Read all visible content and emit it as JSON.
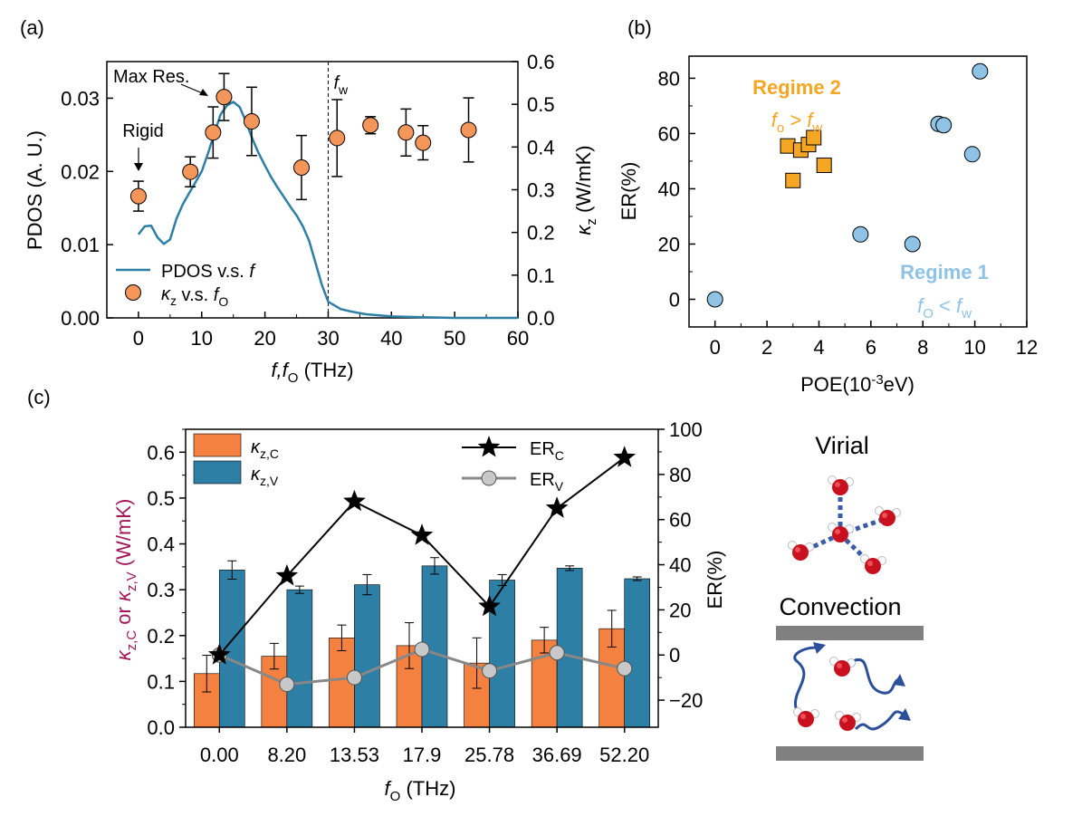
{
  "chart_data": [
    {
      "panel": "(a)",
      "type": "line",
      "xlabel": {
        "main": "f,f",
        "sub": "O",
        "tail": " (THz)"
      },
      "ylabel": "PDOS (A. U.)",
      "y2label": {
        "main": "κ",
        "sub": "z",
        "tail": " (W/mK)"
      },
      "xlim": [
        -5,
        60
      ],
      "ylim": [
        0,
        0.035
      ],
      "y2lim": [
        0,
        0.6
      ],
      "xticks": [
        "0",
        "10",
        "20",
        "30",
        "40",
        "50",
        "60"
      ],
      "yticks": [
        "0.00",
        "0.01",
        "0.02",
        "0.03"
      ],
      "y2ticks": [
        "0.0",
        "0.1",
        "0.2",
        "0.3",
        "0.4",
        "0.5",
        "0.6"
      ],
      "grid": false,
      "legend_position": "bottom-left",
      "series": [
        {
          "name": "PDOS v.s. f",
          "type": "line",
          "axis": "left",
          "color": "#2e7fa5",
          "x": [
            0,
            1,
            2,
            3,
            4,
            5,
            6,
            7,
            8,
            9,
            10,
            11,
            12,
            13,
            14,
            15,
            16,
            17,
            18,
            19,
            20,
            21,
            22,
            23,
            24,
            25,
            26,
            27,
            28,
            29,
            30,
            32,
            34,
            36,
            40,
            45,
            50,
            55,
            60
          ],
          "y": [
            0.0114,
            0.0125,
            0.0126,
            0.011,
            0.0101,
            0.0107,
            0.0135,
            0.0155,
            0.017,
            0.0185,
            0.02,
            0.0225,
            0.0252,
            0.0278,
            0.029,
            0.0295,
            0.0288,
            0.0268,
            0.0245,
            0.0225,
            0.0208,
            0.0192,
            0.0178,
            0.0165,
            0.0152,
            0.014,
            0.0125,
            0.0105,
            0.0075,
            0.0045,
            0.0022,
            0.0012,
            0.0008,
            0.0005,
            0.0002,
            0.0001,
            0.0,
            0.0,
            0.0
          ]
        },
        {
          "name": "κz v.s. fO",
          "type": "scatter",
          "axis": "right",
          "color": "#f4955a",
          "x": [
            0.0,
            8.2,
            11.8,
            13.53,
            17.9,
            25.78,
            31.4,
            36.69,
            42.3,
            45.0,
            52.2
          ],
          "y": [
            0.285,
            0.342,
            0.434,
            0.517,
            0.46,
            0.352,
            0.421,
            0.451,
            0.434,
            0.41,
            0.44
          ],
          "err": [
            0.035,
            0.035,
            0.06,
            0.055,
            0.08,
            0.075,
            0.09,
            0.02,
            0.055,
            0.04,
            0.075
          ]
        }
      ],
      "annotations": {
        "rigid": "Rigid",
        "max_res": "Max Res.",
        "fw_main": "f",
        "fw_sub": "w",
        "fw_x": 30
      },
      "legend": [
        {
          "main": "PDOS v.s. ",
          "italic": "f",
          "sub": "",
          "tail": ""
        },
        {
          "main": "κ",
          "sub": "z",
          "mid": "  v.s. ",
          "italic": "f",
          "sub2": "O"
        }
      ]
    },
    {
      "panel": "(b)",
      "type": "scatter",
      "xlabel": {
        "main": "POE(10",
        "sup": "-3",
        "tail": "eV)"
      },
      "ylabel": "ER(%)",
      "xlim": [
        -1,
        12
      ],
      "ylim": [
        -10,
        88
      ],
      "xticks": [
        "0",
        "2",
        "4",
        "6",
        "8",
        "10",
        "12"
      ],
      "yticks": [
        "0",
        "20",
        "40",
        "60",
        "80"
      ],
      "grid": false,
      "series": [
        {
          "name": "Regime 2",
          "marker": "square",
          "color": "#f5a623",
          "x": [
            2.8,
            3.0,
            3.3,
            3.6,
            3.8,
            4.2
          ],
          "y": [
            55.5,
            43,
            54,
            56,
            58.5,
            48.5
          ]
        },
        {
          "name": "Regime 1",
          "marker": "circle",
          "color": "#8ec3e6",
          "x": [
            0.0,
            5.6,
            7.6,
            8.6,
            8.8,
            9.9,
            10.2
          ],
          "y": [
            0,
            23.5,
            20,
            63.5,
            63,
            52.5,
            82.5
          ]
        }
      ],
      "labels": {
        "regime2": "Regime 2",
        "regime2_cond": {
          "a": "f",
          "asub": "o",
          "op": " > ",
          "b": "f",
          "bsub": "w"
        },
        "regime1": "Regime 1",
        "regime1_cond": {
          "a": "f",
          "asub": "O",
          "op": " < ",
          "b": "f",
          "bsub": "w"
        }
      }
    },
    {
      "panel": "(c)",
      "type": "bar",
      "categories": [
        "0.00",
        "8.20",
        "13.53",
        "17.9",
        "25.78",
        "36.69",
        "52.20"
      ],
      "xlabel": {
        "main": "f",
        "sub": "O",
        "tail": " (THz)"
      },
      "ylabel": {
        "a": "κ",
        "asub": "z,C",
        "mid": " or ",
        "b": "κ",
        "bsub": "z,V",
        "tail": " (W/mK)"
      },
      "y2label": "ER(%)",
      "ylim": [
        0,
        0.65
      ],
      "y2lim": [
        -32,
        100
      ],
      "yticks": [
        "0.0",
        "0.1",
        "0.2",
        "0.3",
        "0.4",
        "0.5",
        "0.6"
      ],
      "y2ticks": [
        "−20",
        "0",
        "20",
        "40",
        "60",
        "80",
        "100"
      ],
      "grid": false,
      "legend_position": "top",
      "series": [
        {
          "name": "κz,C",
          "type": "bar",
          "color": "#f4813f",
          "values": [
            0.117,
            0.155,
            0.195,
            0.178,
            0.14,
            0.19,
            0.215
          ],
          "err": [
            0.04,
            0.028,
            0.028,
            0.05,
            0.055,
            0.028,
            0.04
          ]
        },
        {
          "name": "κz,V",
          "type": "bar",
          "color": "#2e7fa5",
          "values": [
            0.343,
            0.3,
            0.311,
            0.352,
            0.321,
            0.347,
            0.324
          ],
          "err": [
            0.02,
            0.008,
            0.022,
            0.018,
            0.012,
            0.005,
            0.004
          ]
        },
        {
          "name": "ERC",
          "type": "line",
          "axis": "right",
          "color": "#000000",
          "marker": "star",
          "values": [
            0,
            35,
            68,
            53,
            21.5,
            65,
            87.5
          ]
        },
        {
          "name": "ERV",
          "type": "line",
          "axis": "right",
          "color": "#888888",
          "marker": "circle",
          "values": [
            0,
            -13,
            -10,
            2.5,
            -7,
            1,
            -6
          ]
        }
      ],
      "legend": [
        {
          "main": "κ",
          "sub": "z,C"
        },
        {
          "main": "κ",
          "sub": "z,V"
        },
        {
          "main": "ER",
          "sub": "C"
        },
        {
          "main": "ER",
          "sub": "V"
        }
      ],
      "ylabel_color": "#a0185a"
    }
  ],
  "schematic": {
    "virial_label": "Virial",
    "convection_label": "Convection"
  }
}
